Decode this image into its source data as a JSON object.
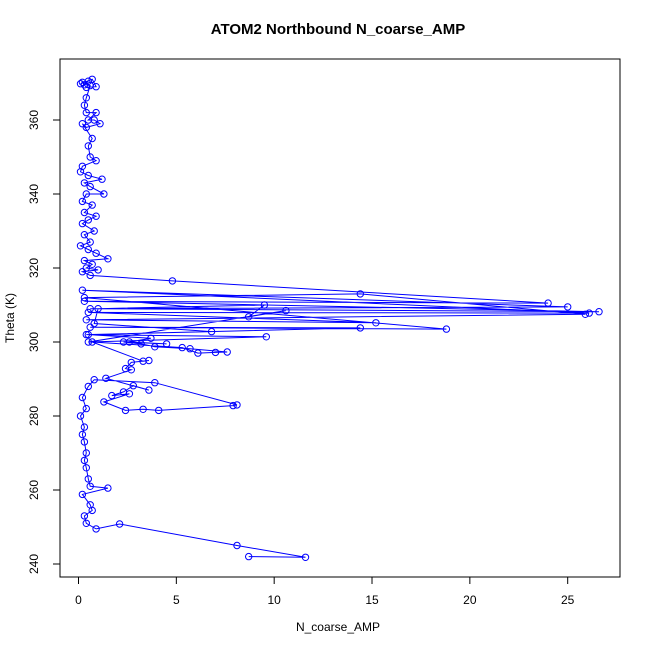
{
  "chart_data": {
    "type": "scatter",
    "title": "ATOM2 Northbound N_coarse_AMP",
    "xlabel": "N_coarse_AMP",
    "ylabel": "Theta (K)",
    "xlim": [
      0,
      27
    ],
    "ylim": [
      239,
      373
    ],
    "xticks": [
      0,
      5,
      10,
      15,
      20,
      25
    ],
    "yticks": [
      240,
      260,
      280,
      300,
      320,
      340,
      360
    ],
    "xtick_labels": [
      "0",
      "5",
      "10",
      "15",
      "20",
      "25"
    ],
    "ytick_labels": [
      "240",
      "260",
      "280",
      "300",
      "320",
      "340",
      "360"
    ],
    "grid": false,
    "legend": "none",
    "series": [
      {
        "color": "#0000ff",
        "marker": "open-circle",
        "connected": true,
        "points": [
          [
            0.3,
            369.5
          ],
          [
            0.5,
            370.5
          ],
          [
            0.1,
            369.8
          ],
          [
            0.7,
            371
          ],
          [
            0.9,
            369
          ],
          [
            0.4,
            368.8
          ],
          [
            0.2,
            370.2
          ],
          [
            0.6,
            369.3
          ],
          [
            0.4,
            366
          ],
          [
            0.3,
            364
          ],
          [
            0.4,
            362
          ],
          [
            0.9,
            362
          ],
          [
            0.5,
            360
          ],
          [
            0.8,
            360
          ],
          [
            1.1,
            359
          ],
          [
            0.4,
            358
          ],
          [
            0.2,
            359
          ],
          [
            0.7,
            355
          ],
          [
            0.5,
            353
          ],
          [
            0.6,
            350
          ],
          [
            0.9,
            349
          ],
          [
            0.2,
            347.5
          ],
          [
            0.1,
            346
          ],
          [
            0.5,
            345
          ],
          [
            1.2,
            344
          ],
          [
            0.3,
            343
          ],
          [
            0.6,
            342
          ],
          [
            1.3,
            340
          ],
          [
            0.4,
            340
          ],
          [
            0.2,
            338
          ],
          [
            0.7,
            337
          ],
          [
            0.3,
            335
          ],
          [
            0.9,
            334
          ],
          [
            0.5,
            333
          ],
          [
            0.2,
            332
          ],
          [
            0.8,
            330
          ],
          [
            0.3,
            329
          ],
          [
            0.6,
            327
          ],
          [
            0.1,
            326
          ],
          [
            0.5,
            325
          ],
          [
            0.9,
            324
          ],
          [
            1.5,
            322.5
          ],
          [
            0.3,
            322
          ],
          [
            0.7,
            321
          ],
          [
            0.4,
            320
          ],
          [
            1.0,
            319.5
          ],
          [
            0.2,
            319
          ],
          [
            0.6,
            318
          ],
          [
            4.8,
            316.5
          ],
          [
            24.0,
            310.5
          ],
          [
            0.3,
            311
          ],
          [
            26.6,
            308.2
          ],
          [
            0.6,
            309
          ],
          [
            25.0,
            309.5
          ],
          [
            0.2,
            314
          ],
          [
            26.1,
            307.8
          ],
          [
            0.5,
            308
          ],
          [
            15.2,
            305.2
          ],
          [
            0.4,
            306
          ],
          [
            25.9,
            307.5
          ],
          [
            14.4,
            313
          ],
          [
            0.3,
            312
          ],
          [
            18.8,
            303.5
          ],
          [
            0.6,
            304
          ],
          [
            14.4,
            303.8
          ],
          [
            0.4,
            302
          ],
          [
            9.6,
            301.4
          ],
          [
            0.5,
            300
          ],
          [
            10.6,
            308.5
          ],
          [
            8.7,
            306.8
          ],
          [
            9.5,
            310
          ],
          [
            1.0,
            309
          ],
          [
            0.8,
            305
          ],
          [
            6.8,
            302.8
          ],
          [
            0.5,
            302
          ],
          [
            3.7,
            301
          ],
          [
            2.6,
            300
          ],
          [
            4.5,
            299.5
          ],
          [
            2.3,
            300
          ],
          [
            3.2,
            299.5
          ],
          [
            3.9,
            298.7
          ],
          [
            5.7,
            298.2
          ],
          [
            7.6,
            297.3
          ],
          [
            7.0,
            297.2
          ],
          [
            6.1,
            297
          ],
          [
            5.3,
            298.5
          ],
          [
            0.7,
            300
          ],
          [
            3.3,
            294.8
          ],
          [
            3.6,
            295
          ],
          [
            2.7,
            294.5
          ],
          [
            2.4,
            292.8
          ],
          [
            2.7,
            292.5
          ],
          [
            1.4,
            290.2
          ],
          [
            3.6,
            287
          ],
          [
            2.8,
            288.2
          ],
          [
            2.3,
            286.5
          ],
          [
            1.7,
            285.5
          ],
          [
            2.6,
            286
          ],
          [
            1.3,
            283.8
          ],
          [
            2.4,
            281.5
          ],
          [
            3.3,
            281.8
          ],
          [
            4.1,
            281.5
          ],
          [
            7.9,
            282.8
          ],
          [
            8.1,
            283
          ],
          [
            3.9,
            289
          ],
          [
            0.8,
            289.8
          ],
          [
            0.5,
            288
          ],
          [
            0.2,
            285
          ],
          [
            0.4,
            282
          ],
          [
            0.1,
            280
          ],
          [
            0.3,
            277
          ],
          [
            0.2,
            275
          ],
          [
            0.3,
            273
          ],
          [
            0.4,
            270
          ],
          [
            0.3,
            268
          ],
          [
            0.4,
            266
          ],
          [
            0.5,
            263
          ],
          [
            0.6,
            261
          ],
          [
            1.5,
            260.5
          ],
          [
            0.2,
            258.8
          ],
          [
            0.6,
            256
          ],
          [
            0.7,
            254.5
          ],
          [
            0.3,
            253
          ],
          [
            0.4,
            251
          ],
          [
            0.9,
            249.5
          ],
          [
            2.1,
            250.8
          ],
          [
            8.1,
            245
          ],
          [
            11.6,
            241.8
          ],
          [
            8.7,
            242
          ]
        ]
      }
    ]
  }
}
